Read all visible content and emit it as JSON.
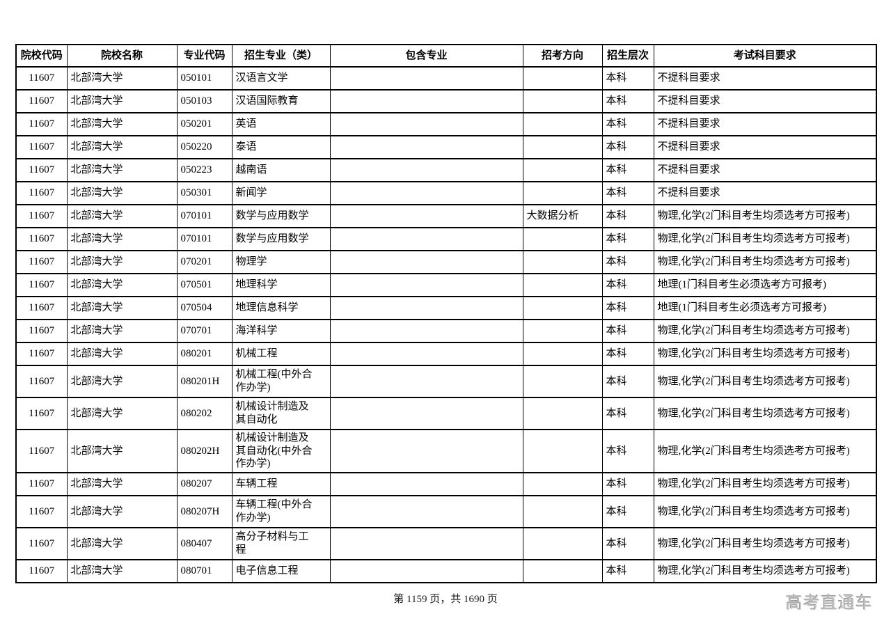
{
  "table": {
    "columns": [
      {
        "key": "college_code",
        "label": "院校代码"
      },
      {
        "key": "college_name",
        "label": "院校名称"
      },
      {
        "key": "major_code",
        "label": "专业代码"
      },
      {
        "key": "major_name",
        "label": "招生专业（类）"
      },
      {
        "key": "included_majors",
        "label": "包含专业"
      },
      {
        "key": "direction",
        "label": "招考方向"
      },
      {
        "key": "level",
        "label": "招生层次"
      },
      {
        "key": "subject_requirements",
        "label": "考试科目要求"
      }
    ],
    "rows": [
      [
        "11607",
        "北部湾大学",
        "050101",
        "汉语言文学",
        "",
        "",
        "本科",
        "不提科目要求"
      ],
      [
        "11607",
        "北部湾大学",
        "050103",
        "汉语国际教育",
        "",
        "",
        "本科",
        "不提科目要求"
      ],
      [
        "11607",
        "北部湾大学",
        "050201",
        "英语",
        "",
        "",
        "本科",
        "不提科目要求"
      ],
      [
        "11607",
        "北部湾大学",
        "050220",
        "泰语",
        "",
        "",
        "本科",
        "不提科目要求"
      ],
      [
        "11607",
        "北部湾大学",
        "050223",
        "越南语",
        "",
        "",
        "本科",
        "不提科目要求"
      ],
      [
        "11607",
        "北部湾大学",
        "050301",
        "新闻学",
        "",
        "",
        "本科",
        "不提科目要求"
      ],
      [
        "11607",
        "北部湾大学",
        "070101",
        "数学与应用数学",
        "",
        "大数据分析",
        "本科",
        "物理,化学(2门科目考生均须选考方可报考)"
      ],
      [
        "11607",
        "北部湾大学",
        "070101",
        "数学与应用数学",
        "",
        "",
        "本科",
        "物理,化学(2门科目考生均须选考方可报考)"
      ],
      [
        "11607",
        "北部湾大学",
        "070201",
        "物理学",
        "",
        "",
        "本科",
        "物理,化学(2门科目考生均须选考方可报考)"
      ],
      [
        "11607",
        "北部湾大学",
        "070501",
        "地理科学",
        "",
        "",
        "本科",
        "地理(1门科目考生必须选考方可报考)"
      ],
      [
        "11607",
        "北部湾大学",
        "070504",
        "地理信息科学",
        "",
        "",
        "本科",
        "地理(1门科目考生必须选考方可报考)"
      ],
      [
        "11607",
        "北部湾大学",
        "070701",
        "海洋科学",
        "",
        "",
        "本科",
        "物理,化学(2门科目考生均须选考方可报考)"
      ],
      [
        "11607",
        "北部湾大学",
        "080201",
        "机械工程",
        "",
        "",
        "本科",
        "物理,化学(2门科目考生均须选考方可报考)"
      ],
      [
        "11607",
        "北部湾大学",
        "080201H",
        "机械工程(中外合\n作办学)",
        "",
        "",
        "本科",
        "物理,化学(2门科目考生均须选考方可报考)"
      ],
      [
        "11607",
        "北部湾大学",
        "080202",
        "机械设计制造及\n其自动化",
        "",
        "",
        "本科",
        "物理,化学(2门科目考生均须选考方可报考)"
      ],
      [
        "11607",
        "北部湾大学",
        "080202H",
        "机械设计制造及\n其自动化(中外合\n作办学)",
        "",
        "",
        "本科",
        "物理,化学(2门科目考生均须选考方可报考)"
      ],
      [
        "11607",
        "北部湾大学",
        "080207",
        "车辆工程",
        "",
        "",
        "本科",
        "物理,化学(2门科目考生均须选考方可报考)"
      ],
      [
        "11607",
        "北部湾大学",
        "080207H",
        "车辆工程(中外合\n作办学)",
        "",
        "",
        "本科",
        "物理,化学(2门科目考生均须选考方可报考)"
      ],
      [
        "11607",
        "北部湾大学",
        "080407",
        "高分子材料与工\n程",
        "",
        "",
        "本科",
        "物理,化学(2门科目考生均须选考方可报考)"
      ],
      [
        "11607",
        "北部湾大学",
        "080701",
        "电子信息工程",
        "",
        "",
        "本科",
        "物理,化学(2门科目考生均须选考方可报考)"
      ]
    ]
  },
  "footer": {
    "page_info": "第 1159 页，共 1690 页"
  },
  "watermark": {
    "text": "高考直通车",
    "color": "#c3c3c3"
  }
}
